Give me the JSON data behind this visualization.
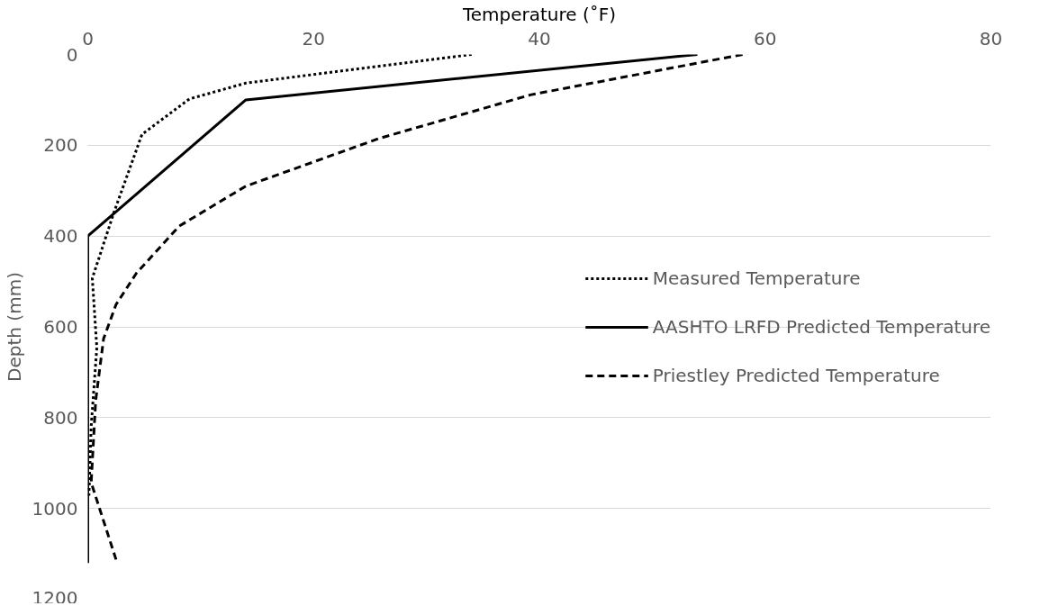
{
  "chart_data": {
    "type": "line",
    "xlabel": "Temperature (˚F)",
    "ylabel": "Depth (mm)",
    "xlim": [
      0,
      80
    ],
    "xticks": [
      0,
      20,
      40,
      60,
      80
    ],
    "ylim": [
      1200,
      0
    ],
    "yticks": [
      0,
      200,
      400,
      600,
      800,
      1000,
      1200
    ],
    "grid": "y",
    "legend": "right",
    "marker": "none",
    "series": [
      {
        "name": "Measured Temperature",
        "color": "#000000",
        "line_style": "dotted",
        "x": [
          34,
          14,
          9,
          4.8,
          2.3,
          0.4,
          0.8,
          0.3,
          0.1
        ],
        "values": [
          0,
          63,
          98,
          176,
          349,
          493,
          646,
          819,
          972
        ]
      },
      {
        "name": "AASHTO LRFD Predicted Temperature",
        "color": "#000000",
        "line_style": "solid",
        "x": [
          54,
          14,
          0,
          0
        ],
        "values": [
          0,
          100,
          400,
          1120
        ]
      },
      {
        "name": "Priestley Predicted Temperature",
        "color": "#000000",
        "line_style": "dashed",
        "x": [
          58,
          52.5,
          39.2,
          25.8,
          14,
          8.1,
          4.3,
          2.5,
          1.4,
          0.7,
          0.3,
          2.6
        ],
        "values": [
          0,
          26,
          89,
          185,
          290,
          378,
          482,
          551,
          626,
          762,
          943,
          1120
        ]
      }
    ]
  }
}
